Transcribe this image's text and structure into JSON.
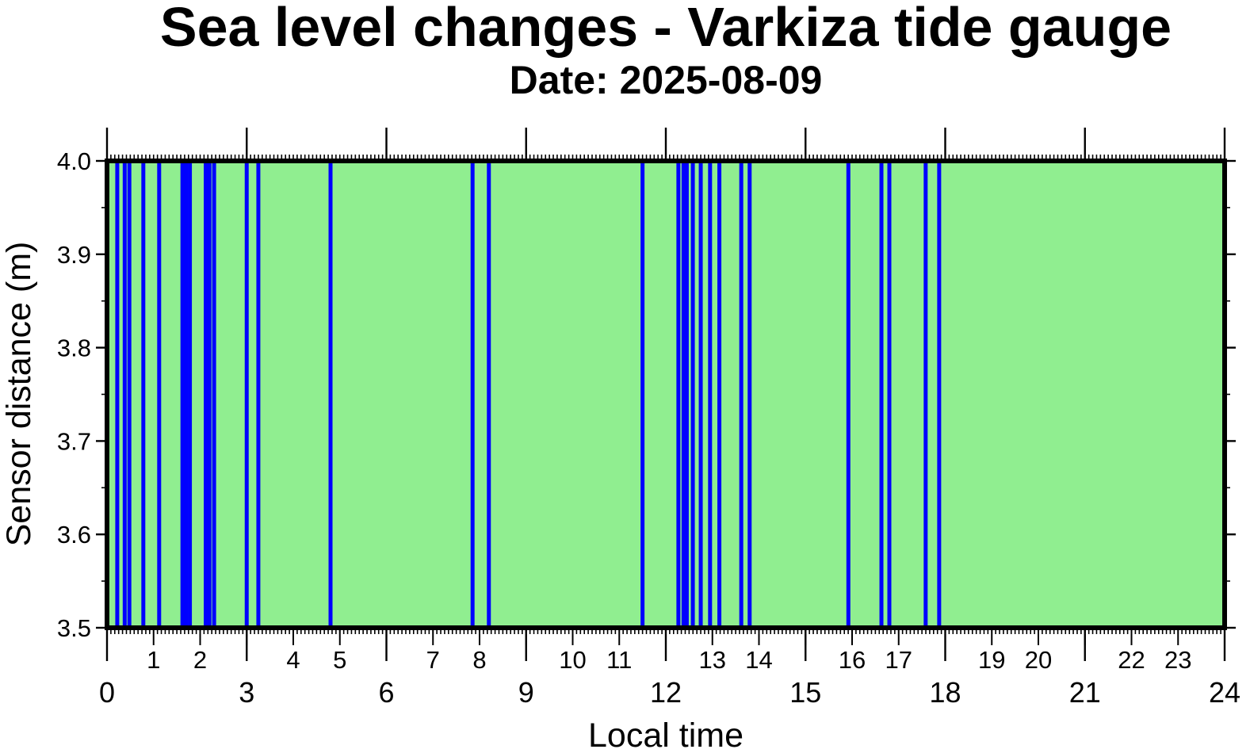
{
  "chart_data": {
    "type": "line",
    "title": "Sea level changes - Varkiza tide gauge",
    "subtitle": "Date: 2025-08-09",
    "xlabel": "Local time",
    "ylabel": "Sensor distance (m)",
    "xlim": [
      0,
      24
    ],
    "ylim": [
      3.5,
      4.0
    ],
    "x_major_ticks": [
      "0",
      "3",
      "6",
      "9",
      "12",
      "15",
      "18",
      "21",
      "24"
    ],
    "x_minor_ticks": [
      "1",
      "2",
      "4",
      "5",
      "7",
      "8",
      "10",
      "11",
      "13",
      "14",
      "16",
      "17",
      "19",
      "20",
      "22",
      "23"
    ],
    "y_ticks": [
      "3.5",
      "3.6",
      "3.7",
      "3.8",
      "3.9",
      "4.0"
    ],
    "grid": false,
    "colors": {
      "background": "#90ee90",
      "spikes": "#0000ff",
      "frame": "#000000"
    },
    "series": [
      {
        "x": [
          0.22,
          0.38,
          0.48,
          0.78,
          1.12,
          1.62,
          1.7,
          1.78,
          2.12,
          2.2,
          2.3,
          3.0,
          3.25,
          4.8,
          7.85,
          8.2,
          11.5,
          12.27,
          12.38,
          12.45,
          12.58,
          12.75,
          12.95,
          13.15,
          13.62,
          13.8,
          15.92,
          16.63,
          16.8,
          17.58,
          17.87
        ],
        "y_range": [
          3.5,
          4.0
        ]
      }
    ]
  }
}
